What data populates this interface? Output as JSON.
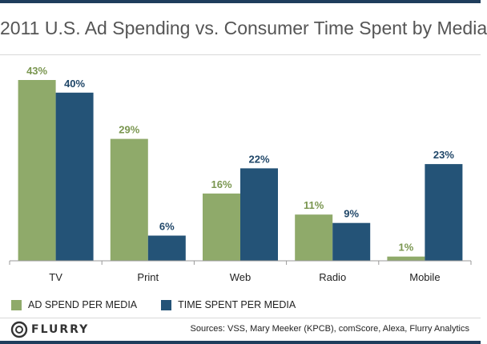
{
  "header": {
    "title": "2011 U.S. Ad Spending vs. Consumer Time Spent by Media"
  },
  "chart_data": {
    "type": "bar",
    "title": "2011 U.S. Ad Spending vs. Consumer Time Spent by Media",
    "categories": [
      "TV",
      "Print",
      "Web",
      "Radio",
      "Mobile"
    ],
    "series": [
      {
        "name": "AD SPEND PER MEDIA",
        "values": [
          43,
          29,
          16,
          11,
          1
        ],
        "labels": [
          "43%",
          "29%",
          "16%",
          "11%",
          "1%"
        ],
        "color": "#8faa6a",
        "label_color": "#7a9650"
      },
      {
        "name": "TIME SPENT PER MEDIA",
        "values": [
          40,
          6,
          22,
          9,
          23
        ],
        "labels": [
          "40%",
          "6%",
          "22%",
          "9%",
          "23%"
        ],
        "color": "#245377",
        "label_color": "#1f4668"
      }
    ],
    "ylim": [
      0,
      43
    ],
    "xlabel": "",
    "ylabel": "",
    "grid": false,
    "legend": "bottom-left"
  },
  "legend": {
    "items": [
      {
        "label": "AD SPEND PER MEDIA",
        "color": "#8faa6a"
      },
      {
        "label": "TIME SPENT PER MEDIA",
        "color": "#245377"
      }
    ]
  },
  "footer": {
    "logo_text": "FLURRY",
    "sources": "Sources: VSS, Mary Meeker (KPCB), comScore, Alexa, Flurry Analytics"
  }
}
